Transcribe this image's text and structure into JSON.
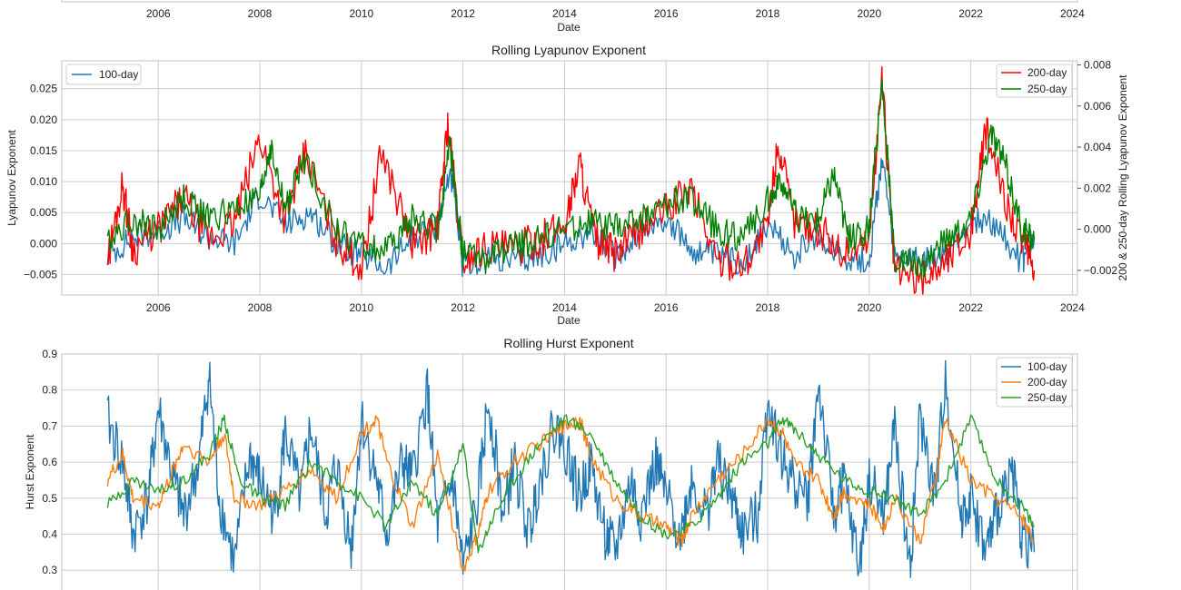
{
  "chart_data": [
    {
      "type": "line",
      "partial": true,
      "xlabel": "Date",
      "x_ticks": [
        "2006",
        "2008",
        "2010",
        "2012",
        "2014",
        "2016",
        "2018",
        "2020",
        "2022",
        "2024"
      ],
      "grid": true
    },
    {
      "type": "line",
      "title": "Rolling Lyapunov Exponent",
      "xlabel": "Date",
      "ylabel": "Lyapunov Exponent",
      "ylabel_right": "200 & 250-day Rolling Lyapunov Exponent",
      "x_ticks": [
        "2006",
        "2008",
        "2010",
        "2012",
        "2014",
        "2016",
        "2018",
        "2020",
        "2022",
        "2024"
      ],
      "y_ticks": [
        "−0.005",
        "0.000",
        "0.005",
        "0.010",
        "0.015",
        "0.020",
        "0.025"
      ],
      "y_ticks_right": [
        "−0.002",
        "0.000",
        "0.002",
        "0.004",
        "0.006",
        "0.008"
      ],
      "xlim": [
        2004.1,
        2024.1
      ],
      "ylim": [
        -0.0083,
        0.0295
      ],
      "ylim_right": [
        -0.0032,
        0.0082
      ],
      "grid": true,
      "legend_left": {
        "placement": "upper-left",
        "entries": [
          "100-day"
        ]
      },
      "legend_right": {
        "placement": "upper-right",
        "entries": [
          "200-day",
          "250-day"
        ]
      },
      "series": [
        {
          "name": "100-day",
          "axis": "left",
          "color": "#1f77b4",
          "x": [
            2005.0,
            2005.5,
            2006.0,
            2006.5,
            2007.0,
            2007.5,
            2008.0,
            2008.5,
            2009.0,
            2009.5,
            2010.0,
            2010.5,
            2011.0,
            2011.5,
            2011.75,
            2012.0,
            2012.5,
            2013.0,
            2013.5,
            2014.0,
            2014.5,
            2015.0,
            2015.5,
            2016.0,
            2016.5,
            2017.0,
            2017.5,
            2018.0,
            2018.5,
            2019.0,
            2019.5,
            2020.0,
            2020.25,
            2020.5,
            2021.0,
            2021.5,
            2022.0,
            2022.5,
            2023.0,
            2023.25
          ],
          "y": [
            -0.002,
            0.001,
            0.002,
            0.004,
            0.001,
            0.0,
            0.008,
            0.003,
            0.005,
            0.0,
            -0.002,
            -0.004,
            0.001,
            0.003,
            0.012,
            -0.004,
            -0.002,
            -0.003,
            -0.002,
            0.0,
            0.002,
            -0.002,
            0.002,
            0.004,
            -0.001,
            -0.002,
            -0.003,
            0.003,
            -0.002,
            0.001,
            -0.002,
            -0.003,
            0.014,
            -0.002,
            -0.003,
            -0.002,
            0.004,
            0.003,
            -0.003,
            0.001
          ]
        },
        {
          "name": "200-day",
          "axis": "right",
          "color": "#ff0000",
          "x": [
            2005.0,
            2005.3,
            2005.5,
            2006.0,
            2006.5,
            2007.0,
            2007.5,
            2008.0,
            2008.5,
            2008.9,
            2009.5,
            2010.0,
            2010.4,
            2011.0,
            2011.5,
            2011.7,
            2012.0,
            2012.5,
            2013.0,
            2013.5,
            2014.0,
            2014.3,
            2014.6,
            2015.0,
            2015.5,
            2016.0,
            2016.5,
            2017.0,
            2017.5,
            2018.0,
            2018.2,
            2018.5,
            2019.0,
            2019.5,
            2020.0,
            2020.25,
            2020.5,
            2021.0,
            2021.5,
            2022.0,
            2022.3,
            2022.6,
            2023.0,
            2023.25
          ],
          "y": [
            -0.0015,
            0.0022,
            -0.001,
            0.0,
            0.0015,
            -0.0005,
            0.0003,
            0.0045,
            0.0005,
            0.0037,
            -0.0005,
            -0.0018,
            0.0038,
            -0.0007,
            0.0,
            0.0052,
            -0.0015,
            -0.0008,
            -0.001,
            -0.0005,
            0.0002,
            0.0033,
            -0.0005,
            -0.0012,
            0.0,
            0.001,
            0.002,
            -0.0015,
            -0.0017,
            0.0,
            0.0043,
            0.0005,
            0.0,
            -0.0012,
            -0.0005,
            0.0075,
            -0.002,
            -0.0025,
            -0.0015,
            0.0,
            0.0048,
            0.002,
            -0.0005,
            -0.002
          ]
        },
        {
          "name": "250-day",
          "axis": "right",
          "color": "#008000",
          "x": [
            2005.0,
            2005.5,
            2006.0,
            2006.5,
            2007.0,
            2007.5,
            2008.0,
            2008.2,
            2008.5,
            2008.9,
            2009.5,
            2010.0,
            2010.5,
            2011.0,
            2011.5,
            2011.75,
            2012.0,
            2012.5,
            2013.0,
            2013.5,
            2014.0,
            2014.5,
            2015.0,
            2015.5,
            2016.0,
            2016.5,
            2017.0,
            2017.5,
            2018.0,
            2018.3,
            2018.6,
            2019.0,
            2019.3,
            2019.6,
            2020.0,
            2020.25,
            2020.5,
            2021.0,
            2021.5,
            2022.0,
            2022.4,
            2022.7,
            2023.0,
            2023.25
          ],
          "y": [
            -0.0005,
            0.0005,
            0.0,
            0.0015,
            0.0005,
            0.001,
            0.0015,
            0.004,
            0.001,
            0.0035,
            0.0,
            -0.0008,
            -0.001,
            0.0005,
            0.0,
            0.004,
            -0.0012,
            -0.0015,
            -0.0008,
            -0.0005,
            0.0,
            0.0003,
            0.0,
            0.0005,
            0.0013,
            0.0015,
            0.0,
            -0.0005,
            0.0015,
            0.0022,
            0.0005,
            0.0005,
            0.0028,
            -0.0005,
            0.0,
            0.0073,
            -0.0015,
            -0.0018,
            -0.0005,
            0.0005,
            0.0047,
            0.003,
            0.0,
            -0.0005
          ]
        }
      ]
    },
    {
      "type": "line",
      "title": "Rolling Hurst Exponent",
      "ylabel": "Hurst Exponent",
      "x_ticks": [],
      "y_ticks": [
        "0.3",
        "0.4",
        "0.5",
        "0.6",
        "0.7",
        "0.8",
        "0.9"
      ],
      "xlim": [
        2004.1,
        2024.1
      ],
      "ylim": [
        0.22,
        0.9
      ],
      "grid": true,
      "legend": {
        "placement": "upper-right",
        "entries": [
          "100-day",
          "200-day",
          "250-day"
        ]
      },
      "series": [
        {
          "name": "100-day",
          "color": "#1f77b4",
          "x": [
            2005.0,
            2005.3,
            2005.5,
            2005.8,
            2006.0,
            2006.3,
            2006.5,
            2006.8,
            2007.0,
            2007.2,
            2007.5,
            2007.8,
            2008.0,
            2008.3,
            2008.5,
            2008.8,
            2009.0,
            2009.3,
            2009.5,
            2009.8,
            2010.0,
            2010.3,
            2010.5,
            2010.8,
            2011.0,
            2011.3,
            2011.5,
            2011.8,
            2012.0,
            2012.3,
            2012.5,
            2012.8,
            2013.0,
            2013.3,
            2013.5,
            2013.8,
            2014.0,
            2014.3,
            2014.5,
            2014.8,
            2015.0,
            2015.3,
            2015.5,
            2015.8,
            2016.0,
            2016.3,
            2016.5,
            2016.8,
            2017.0,
            2017.3,
            2017.5,
            2017.8,
            2018.0,
            2018.3,
            2018.5,
            2018.8,
            2019.0,
            2019.3,
            2019.5,
            2019.8,
            2020.0,
            2020.3,
            2020.5,
            2020.8,
            2021.0,
            2021.3,
            2021.5,
            2021.8,
            2022.0,
            2022.3,
            2022.5,
            2022.8,
            2023.0,
            2023.25
          ],
          "y": [
            0.72,
            0.6,
            0.4,
            0.5,
            0.75,
            0.55,
            0.45,
            0.6,
            0.84,
            0.5,
            0.32,
            0.62,
            0.55,
            0.45,
            0.68,
            0.5,
            0.7,
            0.45,
            0.6,
            0.36,
            0.72,
            0.55,
            0.4,
            0.6,
            0.55,
            0.8,
            0.42,
            0.55,
            0.3,
            0.5,
            0.78,
            0.45,
            0.6,
            0.4,
            0.55,
            0.7,
            0.65,
            0.5,
            0.6,
            0.4,
            0.35,
            0.55,
            0.45,
            0.6,
            0.5,
            0.4,
            0.55,
            0.45,
            0.6,
            0.5,
            0.4,
            0.45,
            0.78,
            0.6,
            0.55,
            0.5,
            0.82,
            0.45,
            0.55,
            0.3,
            0.55,
            0.45,
            0.7,
            0.3,
            0.72,
            0.5,
            0.84,
            0.45,
            0.5,
            0.35,
            0.45,
            0.6,
            0.4,
            0.35
          ]
        },
        {
          "name": "200-day",
          "color": "#ff7f0e",
          "x": [
            2005.0,
            2005.3,
            2005.5,
            2006.0,
            2006.3,
            2006.5,
            2007.0,
            2007.3,
            2007.5,
            2008.0,
            2008.5,
            2009.0,
            2009.5,
            2010.0,
            2010.3,
            2010.5,
            2011.0,
            2011.5,
            2012.0,
            2012.3,
            2012.5,
            2013.0,
            2013.5,
            2014.0,
            2014.3,
            2014.5,
            2015.0,
            2015.5,
            2016.0,
            2016.3,
            2016.5,
            2017.0,
            2017.5,
            2018.0,
            2018.3,
            2018.5,
            2019.0,
            2019.3,
            2019.5,
            2020.0,
            2020.3,
            2020.5,
            2021.0,
            2021.3,
            2021.5,
            2022.0,
            2022.5,
            2023.0,
            2023.25
          ],
          "y": [
            0.55,
            0.62,
            0.5,
            0.48,
            0.58,
            0.65,
            0.6,
            0.68,
            0.5,
            0.48,
            0.52,
            0.58,
            0.5,
            0.68,
            0.72,
            0.6,
            0.42,
            0.62,
            0.3,
            0.4,
            0.52,
            0.6,
            0.65,
            0.7,
            0.72,
            0.62,
            0.5,
            0.45,
            0.42,
            0.38,
            0.45,
            0.55,
            0.62,
            0.72,
            0.68,
            0.6,
            0.55,
            0.45,
            0.52,
            0.48,
            0.42,
            0.5,
            0.38,
            0.55,
            0.72,
            0.55,
            0.5,
            0.45,
            0.38
          ]
        },
        {
          "name": "250-day",
          "color": "#2ca02c",
          "x": [
            2005.0,
            2005.5,
            2006.0,
            2006.5,
            2007.0,
            2007.3,
            2007.6,
            2008.0,
            2008.5,
            2009.0,
            2009.5,
            2010.0,
            2010.5,
            2011.0,
            2011.5,
            2012.0,
            2012.3,
            2012.6,
            2013.0,
            2013.5,
            2014.0,
            2014.5,
            2015.0,
            2015.5,
            2016.0,
            2016.5,
            2017.0,
            2017.5,
            2018.0,
            2018.3,
            2018.6,
            2019.0,
            2019.5,
            2020.0,
            2020.5,
            2021.0,
            2021.5,
            2022.0,
            2022.5,
            2023.0,
            2023.25
          ],
          "y": [
            0.48,
            0.55,
            0.52,
            0.55,
            0.62,
            0.72,
            0.55,
            0.5,
            0.48,
            0.6,
            0.55,
            0.5,
            0.42,
            0.55,
            0.45,
            0.65,
            0.35,
            0.45,
            0.55,
            0.65,
            0.72,
            0.68,
            0.55,
            0.45,
            0.4,
            0.42,
            0.5,
            0.6,
            0.65,
            0.72,
            0.68,
            0.62,
            0.55,
            0.52,
            0.5,
            0.45,
            0.55,
            0.72,
            0.55,
            0.48,
            0.42
          ]
        }
      ]
    }
  ]
}
